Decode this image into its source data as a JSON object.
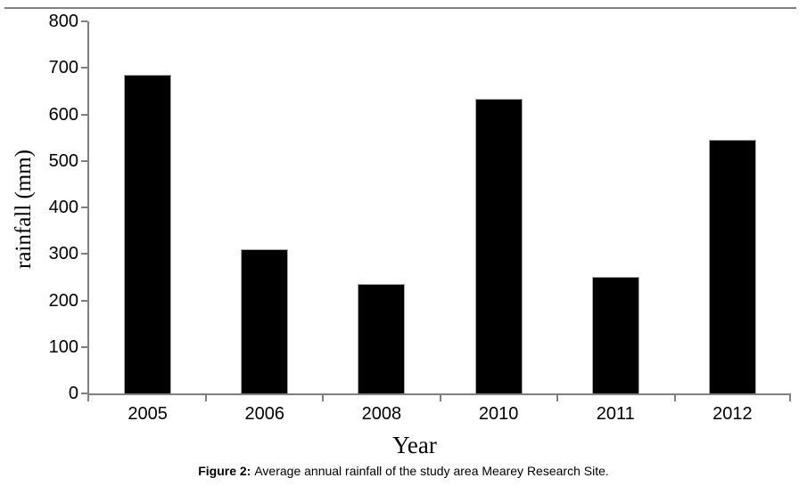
{
  "chart_data": {
    "type": "bar",
    "categories": [
      "2005",
      "2006",
      "2008",
      "2010",
      "2011",
      "2012"
    ],
    "values": [
      685,
      310,
      235,
      633,
      250,
      545
    ],
    "title": "",
    "xlabel": "Year",
    "ylabel": "rainfall (mm)",
    "ylim": [
      0,
      800
    ],
    "yticks": [
      0,
      100,
      200,
      300,
      400,
      500,
      600,
      700,
      800
    ],
    "grid": false,
    "legend": null,
    "bar_color": "#000000",
    "bar_border_color": "#a6a6a6",
    "axis_color": "#808080"
  },
  "caption": {
    "label": "Figure 2:",
    "text": "Average annual rainfall of the study area Mearey Research Site."
  }
}
